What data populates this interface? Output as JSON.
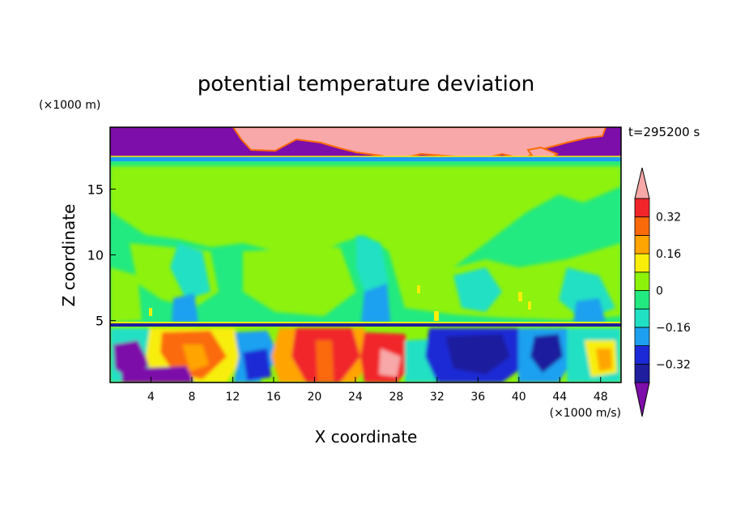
{
  "chart_data": {
    "type": "heatmap",
    "title": "potential temperature deviation",
    "time_label": "t=295200 s",
    "xlabel": "X coordinate",
    "ylabel": "Z coordinate",
    "x_unit": "(×1000 m/s)",
    "y_unit": "(×1000 m)",
    "xlim": [
      0,
      50
    ],
    "ylim": [
      0.3,
      19.7
    ],
    "x_ticks": [
      4,
      8,
      12,
      16,
      20,
      24,
      28,
      32,
      36,
      40,
      44,
      48
    ],
    "y_ticks": [
      5,
      10,
      15
    ],
    "colorbar": {
      "levels": [
        -0.4,
        -0.32,
        -0.24,
        -0.16,
        -0.08,
        0,
        0.08,
        0.16,
        0.24,
        0.32,
        0.4
      ],
      "labels": [
        "0.32",
        "0.16",
        "0",
        "−0.16",
        "−0.32"
      ],
      "label_values": [
        0.32,
        0.16,
        0,
        -0.16,
        -0.32
      ],
      "colors": [
        "#7d0ea9",
        "#1e1e9f",
        "#1b2ad6",
        "#1ea0f0",
        "#20e0c4",
        "#23ea80",
        "#8df20a",
        "#f8ee0a",
        "#ffa400",
        "#fb6a0a",
        "#f1262a",
        "#f8a8a8"
      ]
    }
  }
}
